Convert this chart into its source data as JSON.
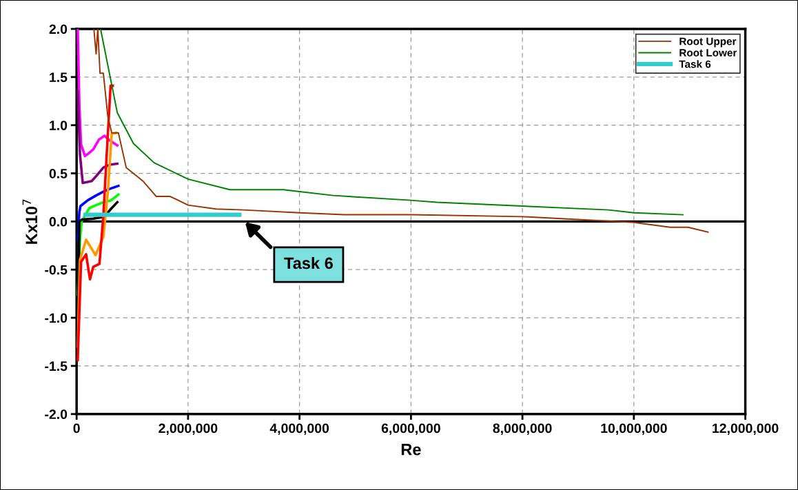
{
  "chart_data": {
    "type": "line",
    "xlabel": "Re",
    "ylabel": "Kx10$^{7}$",
    "xlim": [
      0,
      12000000
    ],
    "ylim": [
      -2.0,
      2.0
    ],
    "xticks": [
      0,
      {
        "value": 2000000,
        "label": "2,000,000"
      },
      {
        "value": 4000000,
        "label": "4,000,000"
      },
      {
        "value": 6000000,
        "label": "6,000,000"
      },
      {
        "value": 8000000,
        "label": "8,000,000"
      },
      {
        "value": 10000000,
        "label": "10,000,000"
      },
      {
        "value": 12000000,
        "label": "12,000,000"
      }
    ],
    "yticks": [
      {
        "value": -2,
        "label": "-2.0"
      },
      {
        "value": -1.5,
        "label": "-1.5"
      },
      {
        "value": -1,
        "label": "-1.0"
      },
      {
        "value": -0.5,
        "label": "-0.5"
      },
      {
        "value": 0,
        "label": "0.0"
      },
      {
        "value": 0.5,
        "label": "0.5"
      },
      {
        "value": 1,
        "label": "1.0"
      },
      {
        "value": 1.5,
        "label": "1.5"
      },
      {
        "value": 2,
        "label": "2.0"
      }
    ],
    "grid": true,
    "legend": "top right",
    "marker": "none",
    "line_style": "solid",
    "ref_lines": [
      {
        "axis": "y",
        "value": 0,
        "color": "#000000"
      }
    ],
    "annotations": [
      "Task 6"
    ],
    "series": [
      {
        "color": "#ff00ff",
        "x": [
          20000,
          50000,
          80000,
          150000,
          200000,
          300000,
          400000,
          500000,
          600000,
          730000
        ],
        "values": [
          2.0,
          1.2,
          0.8,
          0.68,
          0.7,
          0.75,
          0.85,
          0.89,
          0.84,
          0.79
        ]
      },
      {
        "color": "#800080",
        "x": [
          20000,
          60000,
          110000,
          270000,
          350000,
          480000,
          600000,
          730000
        ],
        "values": [
          1.35,
          0.7,
          0.4,
          0.42,
          0.47,
          0.56,
          0.59,
          0.6
        ]
      },
      {
        "color": "#0000ff",
        "x": [
          20000,
          50000,
          70000,
          200000,
          350000,
          480000,
          600000,
          750000
        ],
        "values": [
          -0.19,
          0.1,
          0.16,
          0.22,
          0.27,
          0.31,
          0.34,
          0.37
        ]
      },
      {
        "color": "#00ff00",
        "x": [
          20000,
          60000,
          90000,
          230000,
          350000,
          480000,
          620000,
          750000
        ],
        "values": [
          -0.76,
          -0.2,
          0.0,
          0.14,
          0.17,
          0.2,
          0.22,
          0.28
        ]
      },
      {
        "color": "#000000",
        "x": [
          20000,
          50000,
          100000,
          300000,
          500000,
          600000,
          730000
        ],
        "values": [
          -1.23,
          0.0,
          0.02,
          0.03,
          0.05,
          0.12,
          0.2
        ]
      },
      {
        "color": "#ff9900",
        "x": [
          20000,
          60000,
          170000,
          340000,
          480000,
          560000,
          630000,
          710000
        ],
        "values": [
          -1.3,
          -0.4,
          -0.19,
          -0.35,
          -0.16,
          0.3,
          0.91,
          0.92
        ]
      },
      {
        "color": "#ff0000",
        "x": [
          20000,
          80000,
          170000,
          240000,
          300000,
          410000,
          480000,
          550000,
          610000,
          650000
        ],
        "values": [
          -1.44,
          -0.42,
          -0.34,
          -0.6,
          -0.47,
          -0.44,
          0.06,
          0.8,
          1.41,
          1.41
        ]
      },
      {
        "name": "Root Upper",
        "color": "#993300",
        "x": [
          310000,
          350000,
          380000,
          420000,
          480000,
          560000,
          630000,
          750000,
          890000,
          1190000,
          1430000,
          1680000,
          2000000,
          2500000,
          3000000,
          4000000,
          4800000,
          6000000,
          8000000,
          9000000,
          10000000,
          10650000,
          10970000,
          11330000
        ],
        "values": [
          2.0,
          1.74,
          2.0,
          1.54,
          1.54,
          1.09,
          0.92,
          0.92,
          0.56,
          0.42,
          0.26,
          0.26,
          0.17,
          0.13,
          0.12,
          0.09,
          0.07,
          0.07,
          0.05,
          0.02,
          -0.01,
          -0.06,
          -0.06,
          -0.11
        ]
      },
      {
        "name": "Root Lower",
        "color": "#008000",
        "x": [
          430000,
          730000,
          1020000,
          1390000,
          2000000,
          2750000,
          3200000,
          3710000,
          4000000,
          4600000,
          6000000,
          6460000,
          8000000,
          9550000,
          10000000,
          10880000
        ],
        "values": [
          2.0,
          1.13,
          0.81,
          0.61,
          0.44,
          0.33,
          0.33,
          0.33,
          0.31,
          0.27,
          0.22,
          0.2,
          0.16,
          0.12,
          0.09,
          0.07
        ]
      },
      {
        "name": "Task 6",
        "color": "#33cccc",
        "x": [
          160000,
          2920000
        ],
        "values": [
          0.07,
          0.07
        ]
      }
    ]
  }
}
